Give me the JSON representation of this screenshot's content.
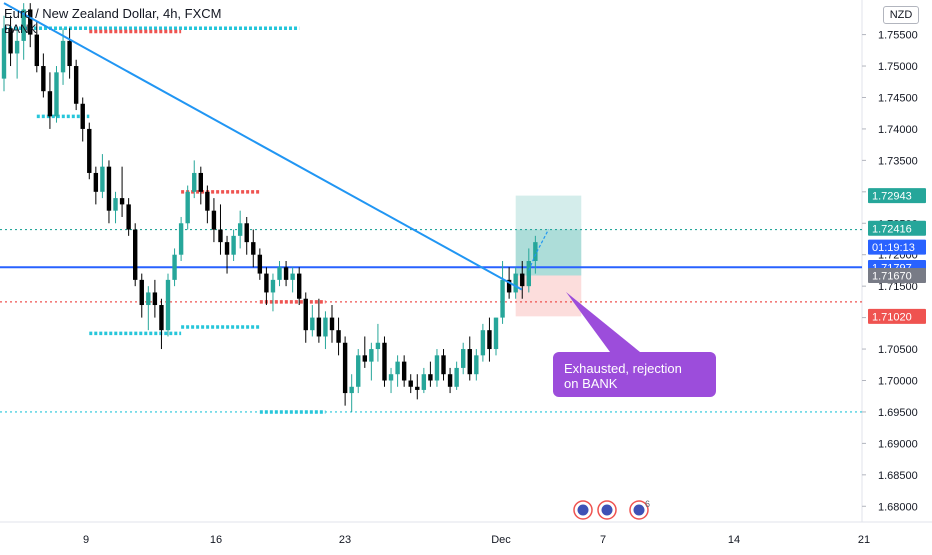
{
  "chart_data": {
    "type": "candlestick",
    "title": "Euro / New Zealand Dollar, 4h, FXCM",
    "indicator_label": "BANK",
    "currency": "NZD",
    "ylim": [
      1.6775,
      1.7605
    ],
    "y_ticks": [
      "1.68000",
      "1.68500",
      "1.69000",
      "1.69500",
      "1.70000",
      "1.70500",
      "1.71000",
      "1.71500",
      "1.72000",
      "1.72500",
      "1.73000",
      "1.73500",
      "1.74000",
      "1.74500",
      "1.75000",
      "1.75500"
    ],
    "x_ticks": [
      "9",
      "16",
      "23",
      "Dec",
      "7",
      "14",
      "21"
    ],
    "price_badges": [
      {
        "label": "1.72943",
        "color": "#26a69a"
      },
      {
        "label": "1.72416",
        "color": "#26a69a"
      },
      {
        "label": "01:19:13",
        "color": "#2962ff"
      },
      {
        "label": "1.71797",
        "color": "#2962ff"
      },
      {
        "label": "1.71670",
        "color": "#787b86"
      },
      {
        "label": "1.71020",
        "color": "#ef5350"
      }
    ],
    "annotation": "Exhausted, rejection on BANK",
    "event_badge_count": "6",
    "candles": [
      [
        1.748,
        1.758,
        1.746,
        1.756
      ],
      [
        1.756,
        1.758,
        1.75,
        1.752
      ],
      [
        1.752,
        1.756,
        1.748,
        1.754
      ],
      [
        1.754,
        1.76,
        1.751,
        1.759
      ],
      [
        1.759,
        1.76,
        1.753,
        1.755
      ],
      [
        1.755,
        1.757,
        1.749,
        1.75
      ],
      [
        1.75,
        1.752,
        1.745,
        1.746
      ],
      [
        1.746,
        1.749,
        1.74,
        1.742
      ],
      [
        1.742,
        1.75,
        1.741,
        1.749
      ],
      [
        1.749,
        1.756,
        1.747,
        1.754
      ],
      [
        1.754,
        1.756,
        1.748,
        1.75
      ],
      [
        1.75,
        1.751,
        1.743,
        1.744
      ],
      [
        1.744,
        1.745,
        1.738,
        1.74
      ],
      [
        1.74,
        1.741,
        1.732,
        1.733
      ],
      [
        1.733,
        1.734,
        1.728,
        1.73
      ],
      [
        1.73,
        1.736,
        1.729,
        1.734
      ],
      [
        1.734,
        1.735,
        1.725,
        1.727
      ],
      [
        1.727,
        1.73,
        1.725,
        1.729
      ],
      [
        1.729,
        1.734,
        1.726,
        1.728
      ],
      [
        1.728,
        1.729,
        1.723,
        1.724
      ],
      [
        1.724,
        1.725,
        1.715,
        1.716
      ],
      [
        1.716,
        1.717,
        1.71,
        1.712
      ],
      [
        1.712,
        1.715,
        1.708,
        1.714
      ],
      [
        1.714,
        1.716,
        1.71,
        1.712
      ],
      [
        1.712,
        1.713,
        1.705,
        1.708
      ],
      [
        1.708,
        1.717,
        1.707,
        1.716
      ],
      [
        1.716,
        1.721,
        1.715,
        1.72
      ],
      [
        1.72,
        1.726,
        1.719,
        1.725
      ],
      [
        1.725,
        1.731,
        1.724,
        1.73
      ],
      [
        1.73,
        1.735,
        1.729,
        1.733
      ],
      [
        1.733,
        1.734,
        1.728,
        1.73
      ],
      [
        1.73,
        1.731,
        1.725,
        1.727
      ],
      [
        1.727,
        1.729,
        1.722,
        1.724
      ],
      [
        1.724,
        1.728,
        1.72,
        1.722
      ],
      [
        1.722,
        1.723,
        1.717,
        1.72
      ],
      [
        1.72,
        1.724,
        1.719,
        1.723
      ],
      [
        1.723,
        1.727,
        1.721,
        1.725
      ],
      [
        1.725,
        1.726,
        1.72,
        1.722
      ],
      [
        1.722,
        1.724,
        1.718,
        1.72
      ],
      [
        1.72,
        1.721,
        1.716,
        1.717
      ],
      [
        1.717,
        1.718,
        1.712,
        1.714
      ],
      [
        1.714,
        1.717,
        1.711,
        1.716
      ],
      [
        1.716,
        1.719,
        1.715,
        1.718
      ],
      [
        1.718,
        1.719,
        1.715,
        1.716
      ],
      [
        1.716,
        1.718,
        1.714,
        1.717
      ],
      [
        1.717,
        1.718,
        1.712,
        1.713
      ],
      [
        1.713,
        1.714,
        1.706,
        1.708
      ],
      [
        1.708,
        1.712,
        1.707,
        1.71
      ],
      [
        1.71,
        1.713,
        1.706,
        1.707
      ],
      [
        1.707,
        1.711,
        1.705,
        1.71
      ],
      [
        1.71,
        1.712,
        1.706,
        1.708
      ],
      [
        1.708,
        1.71,
        1.704,
        1.706
      ],
      [
        1.706,
        1.707,
        1.696,
        1.698
      ],
      [
        1.698,
        1.701,
        1.695,
        1.699
      ],
      [
        1.699,
        1.705,
        1.698,
        1.704
      ],
      [
        1.704,
        1.707,
        1.702,
        1.703
      ],
      [
        1.703,
        1.706,
        1.7,
        1.705
      ],
      [
        1.705,
        1.709,
        1.703,
        1.706
      ],
      [
        1.706,
        1.707,
        1.699,
        1.7
      ],
      [
        1.7,
        1.702,
        1.698,
        1.701
      ],
      [
        1.701,
        1.704,
        1.699,
        1.703
      ],
      [
        1.703,
        1.704,
        1.699,
        1.7
      ],
      [
        1.7,
        1.701,
        1.698,
        1.699
      ],
      [
        1.699,
        1.701,
        1.697,
        1.6985
      ],
      [
        1.6985,
        1.702,
        1.698,
        1.701
      ],
      [
        1.701,
        1.703,
        1.699,
        1.7
      ],
      [
        1.7,
        1.705,
        1.699,
        1.704
      ],
      [
        1.704,
        1.705,
        1.7,
        1.701
      ],
      [
        1.701,
        1.702,
        1.698,
        1.699
      ],
      [
        1.699,
        1.703,
        1.6985,
        1.702
      ],
      [
        1.702,
        1.706,
        1.701,
        1.705
      ],
      [
        1.705,
        1.707,
        1.7,
        1.701
      ],
      [
        1.701,
        1.705,
        1.7,
        1.704
      ],
      [
        1.704,
        1.709,
        1.703,
        1.708
      ],
      [
        1.708,
        1.71,
        1.703,
        1.705
      ],
      [
        1.705,
        1.71,
        1.704,
        1.71
      ],
      [
        1.71,
        1.719,
        1.709,
        1.716
      ],
      [
        1.716,
        1.718,
        1.713,
        1.714
      ],
      [
        1.714,
        1.718,
        1.713,
        1.717
      ],
      [
        1.717,
        1.719,
        1.713,
        1.715
      ],
      [
        1.715,
        1.721,
        1.714,
        1.719
      ],
      [
        1.719,
        1.723,
        1.717,
        1.722
      ]
    ],
    "trendline": {
      "from": [
        0,
        1.76
      ],
      "to": [
        78,
        1.715
      ]
    },
    "horizontal_levels": [
      {
        "price": 1.718,
        "style": "solid",
        "color": "#2962ff"
      },
      {
        "price": 1.7125,
        "style": "dotted",
        "color": "#ef5350"
      },
      {
        "price": 1.724,
        "style": "dotted",
        "color": "#26a69a"
      },
      {
        "price": 1.695,
        "style": "dotted",
        "color": "#26c6da"
      }
    ],
    "bank_levels": [
      {
        "from": 0,
        "to": 45,
        "price": 1.756,
        "color": "#26c6da"
      },
      {
        "from": 13,
        "to": 27,
        "price": 1.7555,
        "color": "#ef5350"
      },
      {
        "from": 5,
        "to": 13,
        "price": 1.742,
        "color": "#26c6da"
      },
      {
        "from": 27,
        "to": 39,
        "price": 1.73,
        "color": "#ef5350"
      },
      {
        "from": 13,
        "to": 27,
        "price": 1.7075,
        "color": "#26c6da"
      },
      {
        "from": 27,
        "to": 39,
        "price": 1.7085,
        "color": "#26c6da"
      },
      {
        "from": 39,
        "to": 49,
        "price": 1.7125,
        "color": "#ef5350"
      },
      {
        "from": 39,
        "to": 49,
        "price": 1.695,
        "color": "#26c6da"
      }
    ],
    "position": {
      "entry": 1.7167,
      "target": 1.7294,
      "stop": 1.7102,
      "from": 78,
      "to": 88
    }
  }
}
